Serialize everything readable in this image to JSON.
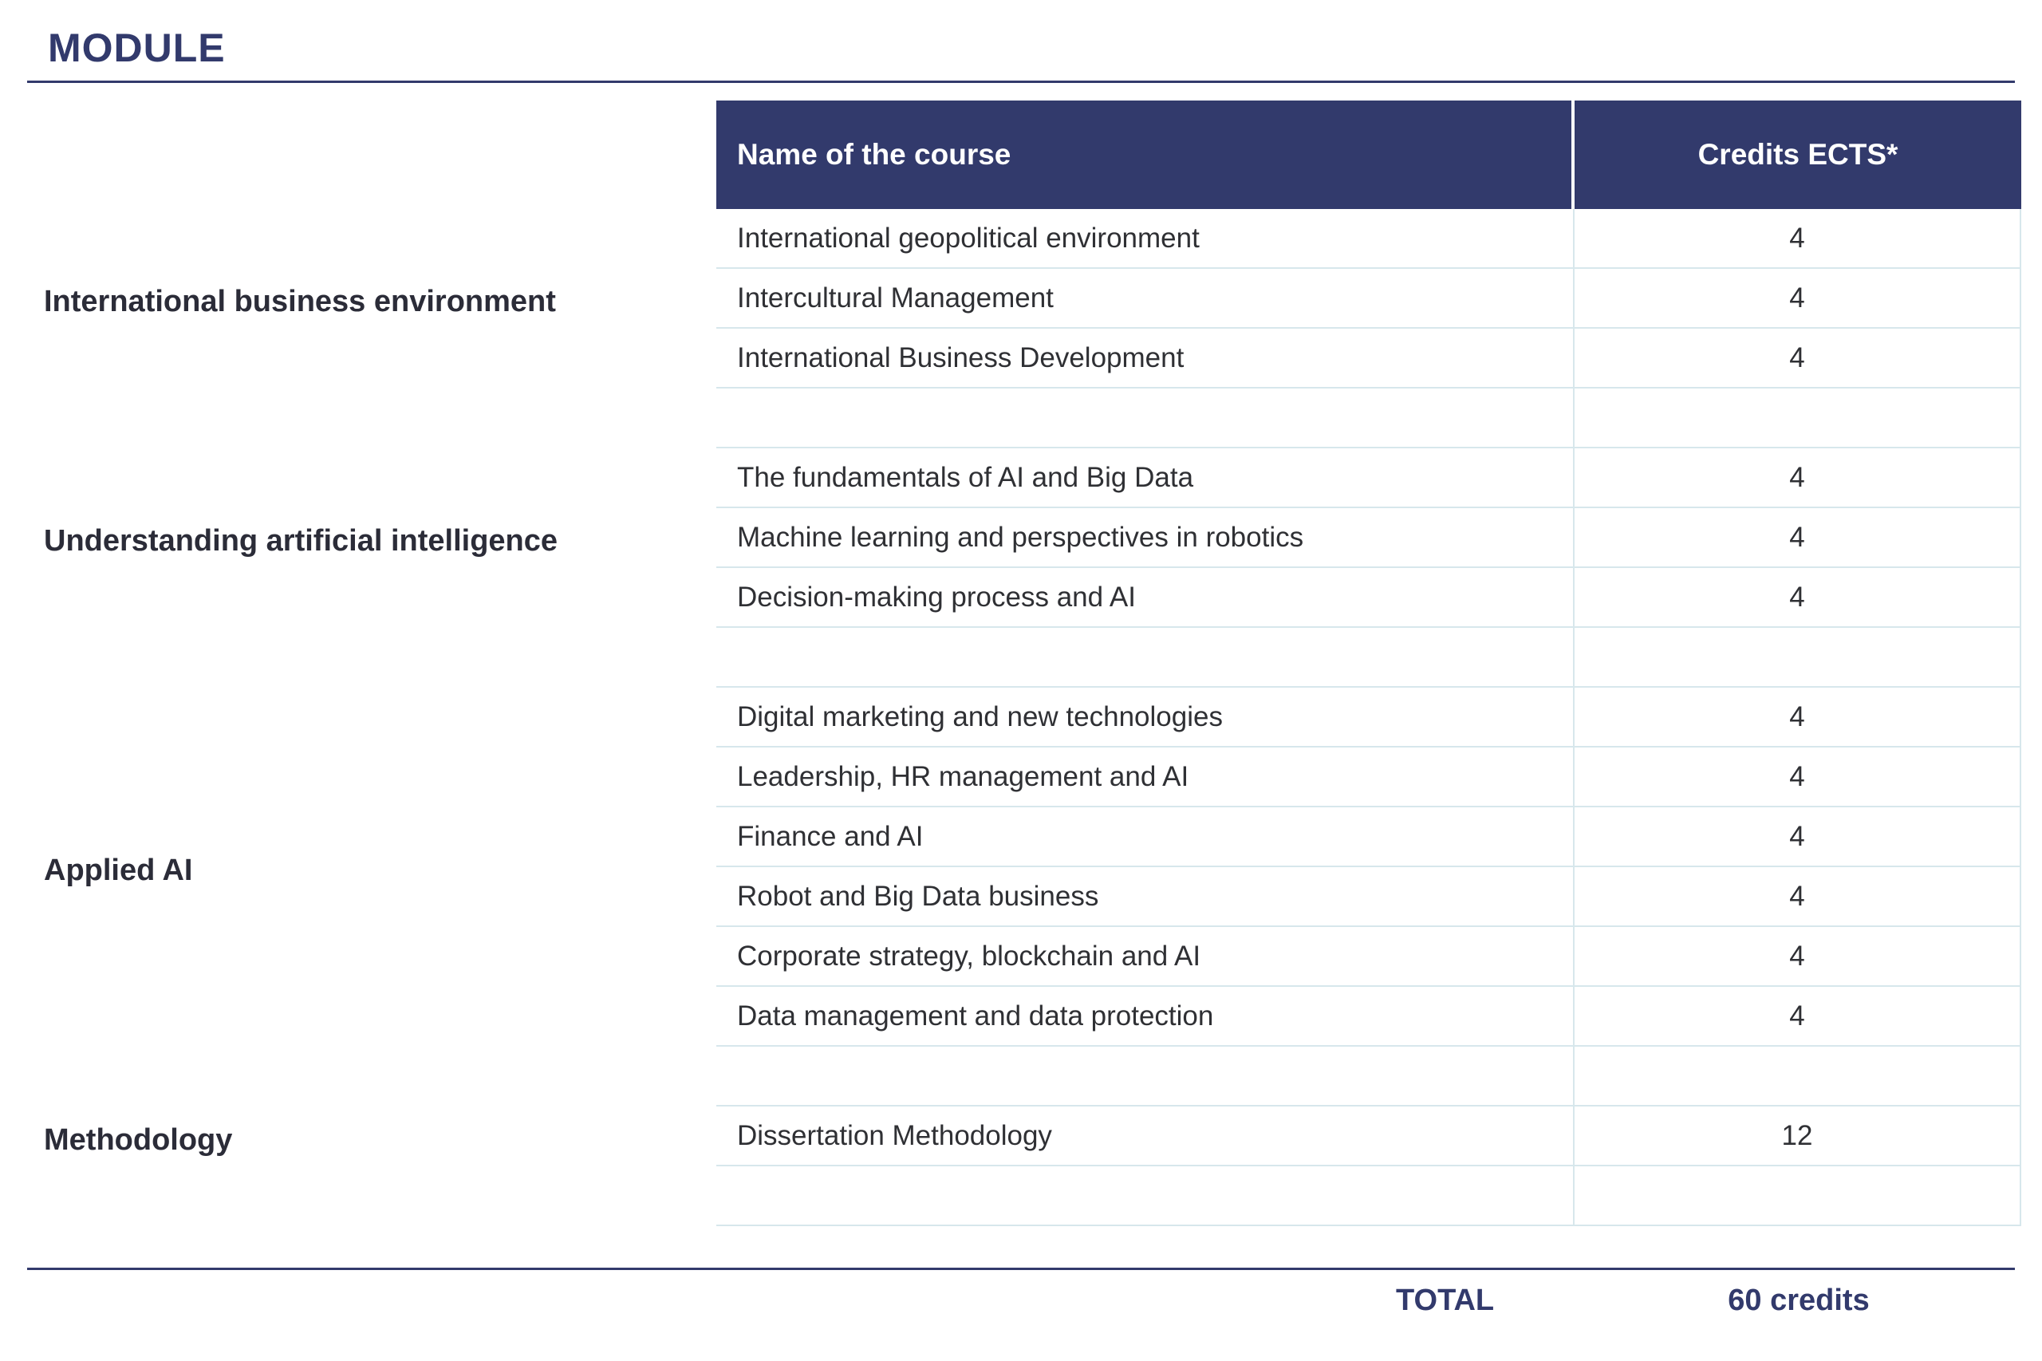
{
  "title": "MODULE",
  "table": {
    "headers": {
      "course": "Name of the course",
      "credits": "Credits ECTS*"
    },
    "rows": [
      {
        "course": "International geopolitical environment",
        "credits": "4"
      },
      {
        "course": "Intercultural Management",
        "credits": "4"
      },
      {
        "course": "International Business Development",
        "credits": "4"
      },
      {
        "course": "",
        "credits": ""
      },
      {
        "course": "The fundamentals of AI and Big Data",
        "credits": "4"
      },
      {
        "course": "Machine learning and perspectives in robotics",
        "credits": "4"
      },
      {
        "course": "Decision-making process and AI",
        "credits": "4"
      },
      {
        "course": "",
        "credits": ""
      },
      {
        "course": "Digital marketing and new technologies",
        "credits": "4"
      },
      {
        "course": "Leadership, HR management and AI",
        "credits": "4"
      },
      {
        "course": "Finance and AI",
        "credits": "4"
      },
      {
        "course": "Robot and Big Data business",
        "credits": "4"
      },
      {
        "course": "Corporate strategy, blockchain and AI",
        "credits": "4"
      },
      {
        "course": "Data management and data protection",
        "credits": "4"
      },
      {
        "course": "",
        "credits": ""
      },
      {
        "course": "Dissertation Methodology",
        "credits": "12"
      },
      {
        "course": "",
        "credits": ""
      }
    ]
  },
  "modules": [
    "International business environment",
    "Understanding artificial intelligence",
    "Applied AI",
    "Methodology"
  ],
  "total": {
    "label": "TOTAL",
    "value": "60 credits"
  }
}
